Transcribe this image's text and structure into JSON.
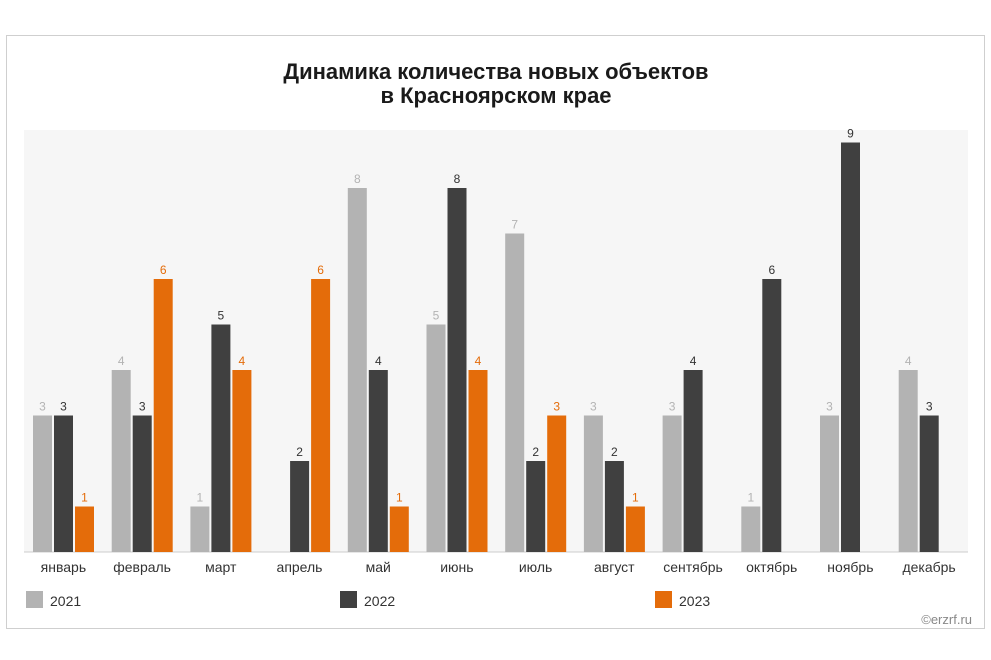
{
  "chart_data": {
    "type": "bar",
    "title_lines": [
      "Динамика количества новых объектов",
      "в Красноярском крае"
    ],
    "categories": [
      "январь",
      "февраль",
      "март",
      "апрель",
      "май",
      "июнь",
      "июль",
      "август",
      "сентябрь",
      "октябрь",
      "ноябрь",
      "декабрь"
    ],
    "series": [
      {
        "name": "2021",
        "color": "#b3b3b3",
        "values": [
          3,
          4,
          1,
          null,
          8,
          5,
          7,
          3,
          3,
          1,
          3,
          4
        ]
      },
      {
        "name": "2022",
        "color": "#404040",
        "values": [
          3,
          3,
          5,
          2,
          4,
          8,
          2,
          2,
          4,
          6,
          9,
          3
        ]
      },
      {
        "name": "2023",
        "color": "#e46c0a",
        "values": [
          1,
          6,
          4,
          6,
          1,
          4,
          3,
          1,
          null,
          null,
          null,
          null
        ]
      }
    ],
    "ylim": [
      0,
      9
    ],
    "grid": false,
    "legend": "bottom"
  },
  "credit": "©erzrf.ru"
}
